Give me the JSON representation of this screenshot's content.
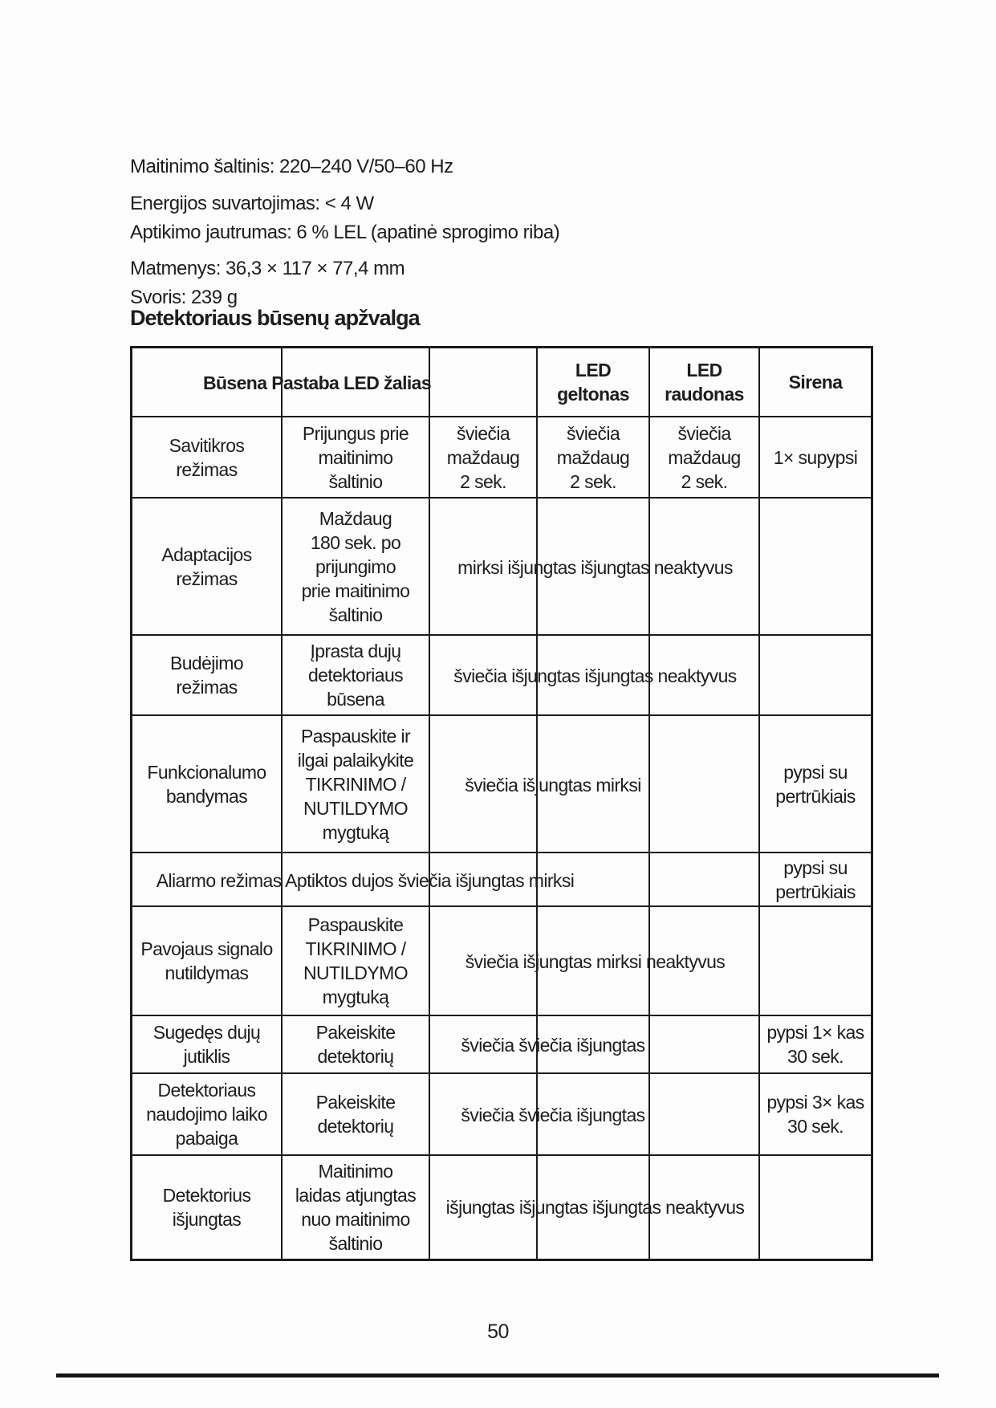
{
  "page": {
    "number": "50"
  },
  "specs": {
    "line1": "Maitinimo šaltinis: 220–240 V/50–60 Hz",
    "line2": "Energijos suvartojimas: < 4 W",
    "line3": "Aptikimo jautrumas: 6 % LEL (apatinė sprogimo riba)",
    "line4": "Matmenys: 36,3 × 117 × 77,4 mm",
    "line5": "Svoris: 239 g"
  },
  "section_title": "Detektoriaus būsenų apžvalga",
  "table": {
    "header": {
      "combined": "Būsena Pastaba LED žalias",
      "led_geltonas": "LED\ngeltonas",
      "led_raudonas": "LED\nraudonas",
      "sirena": "Sirena"
    },
    "rows": [
      {
        "busena": "Savitikros\nrežimas",
        "pastaba": "Prijungus prie\nmaitinimo\nšaltinio",
        "led_zalias": "šviečia\nmaždaug\n2 sek.",
        "led_geltonas": "šviečia\nmaždaug\n2 sek.",
        "led_raudonas": "šviečia\nmaždaug\n2 sek.",
        "sirena": "1× supypsi"
      },
      {
        "busena": "Adaptacijos\nrežimas",
        "pastaba": "Maždaug\n180 sek. po\nprijungimo\nprie maitinimo\nšaltinio",
        "led_span": "mirksi išjungtas išjungtas neaktyvus",
        "sirena": ""
      },
      {
        "busena": "Budėjimo\nrežimas",
        "pastaba": "Įprasta dujų\ndetektoriaus\nbūsena",
        "led_span": "šviečia išjungtas išjungtas neaktyvus",
        "sirena": ""
      },
      {
        "busena": "Funkcionalumo\nbandymas",
        "pastaba": "Paspauskite ir\nilgai palaikykite\nTIKRINIMO /\nNUTILDYMO\nmygtuką",
        "led_span": "šviečia išjungtas mirksi",
        "sirena": "pypsi su\npertrūkiais"
      },
      {
        "overflow_line": "Aliarmo režimas Aptiktos dujos šviečia išjungtas mirksi",
        "sirena": "pypsi su\npertrūkiais"
      },
      {
        "busena": "Pavojaus signalo\nnutildymas",
        "pastaba": "Paspauskite\nTIKRINIMO /\nNUTILDYMO\nmygtuką",
        "led_span": "šviečia išjungtas mirksi neaktyvus",
        "sirena": ""
      },
      {
        "busena": "Sugedęs dujų\njutiklis",
        "pastaba": "Pakeiskite\ndetektorių",
        "led_span": "šviečia šviečia išjungtas",
        "sirena": "pypsi 1× kas\n30 sek."
      },
      {
        "busena": "Detektoriaus\nnaudojimo laiko\npabaiga",
        "pastaba": "Pakeiskite\ndetektorių",
        "led_span": "šviečia šviečia išjungtas",
        "sirena": "pypsi 3× kas\n30 sek."
      },
      {
        "busena": "Detektorius\nišjungtas",
        "pastaba": "Maitinimo\nlaidas atjungtas\nnuo maitinimo\nšaltinio",
        "led_span": "išjungtas išjungtas išjungtas neaktyvus",
        "sirena": ""
      }
    ]
  }
}
